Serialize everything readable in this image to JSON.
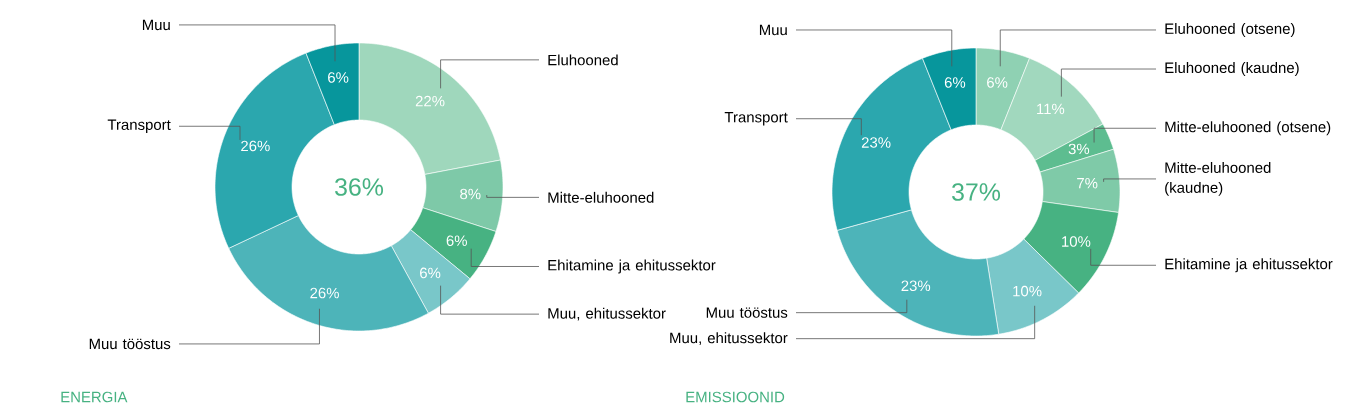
{
  "chart_data": [
    {
      "type": "donut",
      "title": "ENERGIA",
      "annotations": [
        "36%"
      ],
      "categories": [
        "Eluhooned",
        "Mitte-eluhooned",
        "Ehitamine ja ehitussektor",
        "Muu, ehitussektor",
        "Muu tööstus",
        "Transport",
        "Muu"
      ],
      "values": [
        22,
        8,
        6,
        6,
        26,
        26,
        6
      ],
      "value_labels": [
        "22%",
        "8%",
        "6%",
        "6%",
        "26%",
        "26%",
        "6%"
      ],
      "colors": [
        "#9fd7bc",
        "#7ec9a8",
        "#47b282",
        "#79c7c9",
        "#4db4b9",
        "#2ba7ae",
        "#07969c"
      ]
    },
    {
      "type": "donut",
      "title": "EMISSIOONID",
      "annotations": [
        "37%"
      ],
      "categories": [
        "Eluhooned (otsene)",
        "Eluhooned (kaudne)",
        "Mitte-eluhooned (otsene)",
        "Mitte-eluhooned (kaudne)",
        "Ehitamine ja ehitussektor",
        "Muu, ehitussektor",
        "Muu tööstus",
        "Transport",
        "Muu"
      ],
      "values": [
        6,
        11,
        3,
        7,
        10,
        10,
        23,
        23,
        6
      ],
      "value_labels": [
        "6%",
        "11%",
        "3%",
        "7%",
        "10%",
        "10%",
        "23%",
        "23%",
        "6%"
      ],
      "colors": [
        "#8fd1b3",
        "#a1d8be",
        "#5dbd90",
        "#7fcaa8",
        "#47b282",
        "#79c7c9",
        "#4db4b9",
        "#2ba7ae",
        "#07969c"
      ]
    }
  ]
}
